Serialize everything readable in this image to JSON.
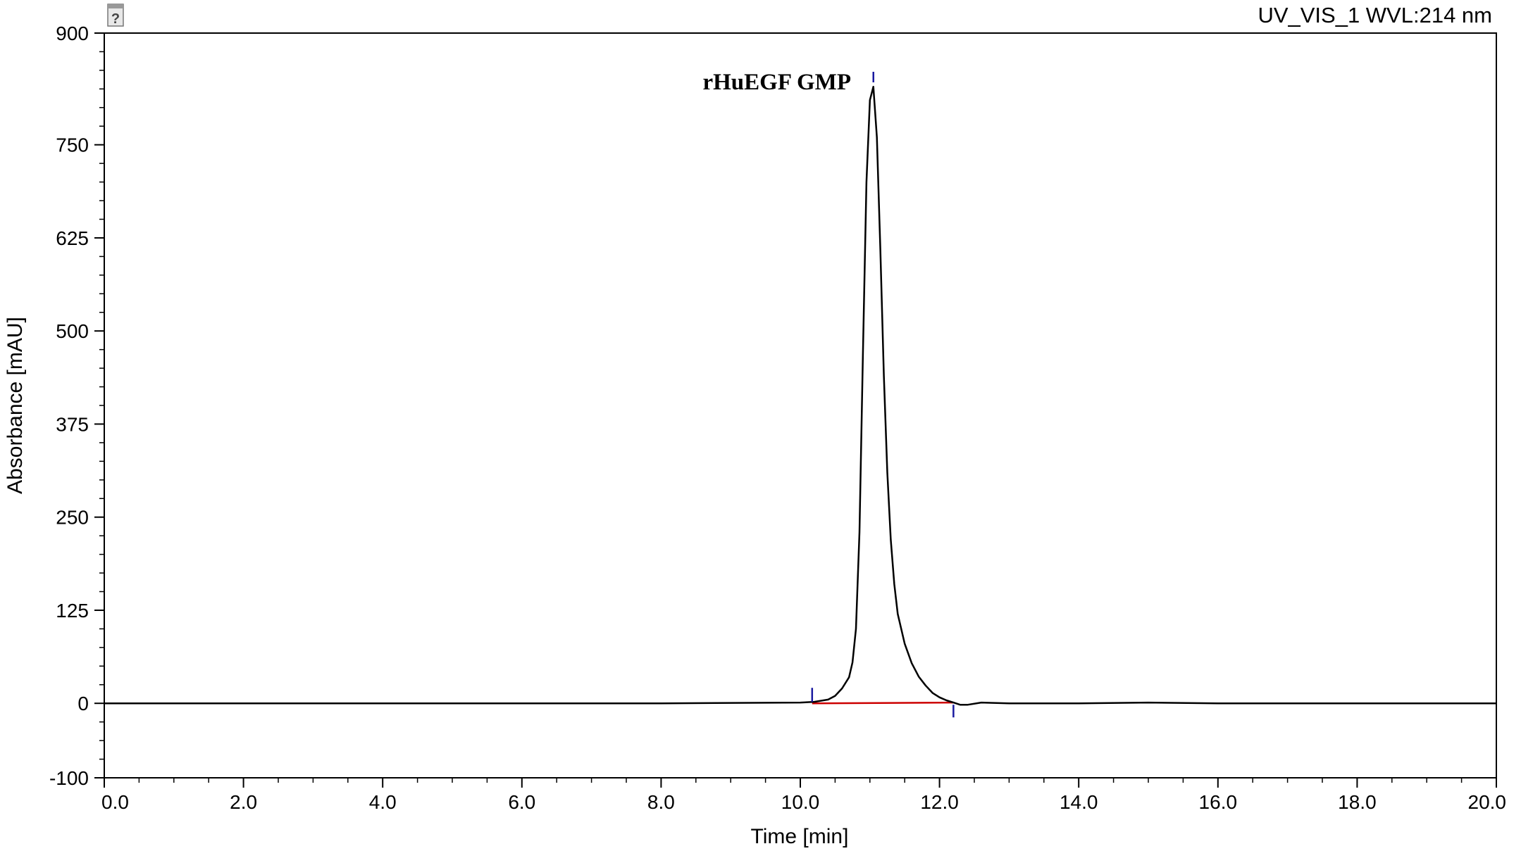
{
  "chart_data": {
    "type": "line",
    "channel_label": "UV_VIS_1 WVL:214 nm",
    "xlabel": "Time [min]",
    "ylabel": "Absorbance [mAU]",
    "xlim": [
      0,
      20
    ],
    "ylim": [
      -100,
      900
    ],
    "x_ticks": [
      "0.0",
      "2.0",
      "4.0",
      "6.0",
      "8.0",
      "10.0",
      "12.0",
      "14.0",
      "16.0",
      "18.0",
      "20.0"
    ],
    "y_ticks": [
      "900",
      "750",
      "625",
      "500",
      "375",
      "250",
      "125",
      "0",
      "-100"
    ],
    "peak_label": "rHuEGF GMP",
    "peak_time": 11.05,
    "integration_start": 10.17,
    "integration_end": 12.2,
    "baseline_color": "#cc0000",
    "trace_color": "#000000",
    "marker_color": "#1a1aa0",
    "series": [
      {
        "x": [
          0.0,
          2.0,
          4.0,
          6.0,
          8.0,
          10.0,
          10.2,
          10.4,
          10.5,
          10.6,
          10.7,
          10.75,
          10.8,
          10.85,
          10.9,
          10.95,
          11.0,
          11.05,
          11.1,
          11.15,
          11.2,
          11.25,
          11.3,
          11.35,
          11.4,
          11.5,
          11.6,
          11.7,
          11.8,
          11.9,
          12.0,
          12.1,
          12.2,
          12.3,
          12.4,
          12.6,
          13.0,
          14.0,
          15.0,
          16.0,
          18.0,
          20.0
        ],
        "y": [
          0,
          0,
          0,
          0,
          0,
          1,
          2,
          5,
          10,
          20,
          35,
          55,
          100,
          230,
          470,
          700,
          810,
          828,
          760,
          610,
          440,
          310,
          220,
          160,
          120,
          80,
          54,
          36,
          24,
          14,
          8,
          4,
          1,
          -2,
          -2,
          1,
          0,
          0,
          1,
          0,
          0,
          0
        ]
      }
    ]
  }
}
